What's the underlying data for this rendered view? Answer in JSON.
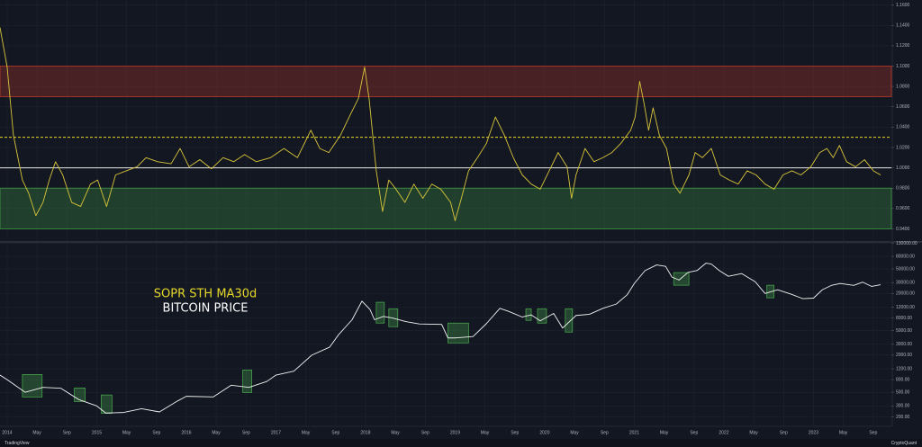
{
  "chart_data": [
    {
      "type": "line",
      "color": "#d9c53a",
      "xlim": [
        2013.92,
        2023.87
      ],
      "ylim": [
        0.928,
        1.165
      ],
      "yticks": [
        {
          "value": 0.94,
          "label": "0.9400"
        },
        {
          "value": 0.96,
          "label": "0.9600"
        },
        {
          "value": 0.98,
          "label": "0.9800"
        },
        {
          "value": 1.0,
          "label": "1.0000"
        },
        {
          "value": 1.02,
          "label": "1.0200"
        },
        {
          "value": 1.04,
          "label": "1.0400"
        },
        {
          "value": 1.06,
          "label": "1.0600"
        },
        {
          "value": 1.08,
          "label": "1.0800"
        },
        {
          "value": 1.1,
          "label": "1.1000"
        },
        {
          "value": 1.12,
          "label": "1.1200"
        },
        {
          "value": 1.14,
          "label": "1.1400"
        },
        {
          "value": 1.16,
          "label": "1.1600"
        }
      ],
      "bands": [
        {
          "range": [
            1.07,
            1.1
          ],
          "color": "#c0392b"
        },
        {
          "range": [
            0.94,
            0.98
          ],
          "color": "#3f9b45"
        }
      ],
      "hlines": [
        {
          "value": 1.0,
          "color": "#e8e8e8",
          "dashed": false
        },
        {
          "value": 1.03,
          "color": "#e5d72a",
          "dashed": true
        }
      ],
      "x": [
        2013.92,
        2014.0,
        2014.07,
        2014.17,
        2014.24,
        2014.32,
        2014.4,
        2014.47,
        2014.54,
        2014.62,
        2014.72,
        2014.82,
        2014.93,
        2015.01,
        2015.11,
        2015.21,
        2015.33,
        2015.45,
        2015.55,
        2015.68,
        2015.83,
        2015.93,
        2016.03,
        2016.15,
        2016.28,
        2016.41,
        2016.53,
        2016.65,
        2016.78,
        2016.94,
        2017.09,
        2017.24,
        2017.39,
        2017.49,
        2017.59,
        2017.72,
        2017.84,
        2017.92,
        2017.99,
        2018.04,
        2018.12,
        2018.19,
        2018.26,
        2018.34,
        2018.44,
        2018.54,
        2018.64,
        2018.74,
        2018.84,
        2018.95,
        2019.0,
        2019.07,
        2019.15,
        2019.25,
        2019.35,
        2019.45,
        2019.55,
        2019.65,
        2019.75,
        2019.85,
        2019.95,
        2020.05,
        2020.15,
        2020.25,
        2020.3,
        2020.35,
        2020.45,
        2020.55,
        2020.65,
        2020.75,
        2020.85,
        2020.96,
        2021.01,
        2021.06,
        2021.11,
        2021.16,
        2021.21,
        2021.28,
        2021.36,
        2021.44,
        2021.51,
        2021.61,
        2021.68,
        2021.76,
        2021.86,
        2021.96,
        2022.06,
        2022.16,
        2022.26,
        2022.36,
        2022.46,
        2022.56,
        2022.66,
        2022.76,
        2022.86,
        2022.97,
        2023.07,
        2023.15,
        2023.22,
        2023.29,
        2023.37,
        2023.47,
        2023.57,
        2023.67,
        2023.75
      ],
      "values": [
        1.138,
        1.099,
        1.032,
        0.988,
        0.975,
        0.953,
        0.966,
        0.988,
        1.006,
        0.993,
        0.966,
        0.962,
        0.984,
        0.988,
        0.962,
        0.993,
        0.997,
        1.001,
        1.01,
        1.006,
        1.004,
        1.019,
        1.001,
        1.008,
        0.999,
        1.01,
        1.006,
        1.013,
        1.006,
        1.01,
        1.019,
        1.01,
        1.037,
        1.019,
        1.015,
        1.032,
        1.054,
        1.068,
        1.099,
        1.068,
        0.997,
        0.957,
        0.988,
        0.979,
        0.966,
        0.984,
        0.97,
        0.984,
        0.979,
        0.966,
        0.948,
        0.97,
        0.997,
        1.01,
        1.024,
        1.05,
        1.032,
        1.01,
        0.993,
        0.984,
        0.979,
        0.997,
        1.015,
        1.001,
        0.97,
        0.993,
        1.019,
        1.006,
        1.01,
        1.015,
        1.024,
        1.037,
        1.05,
        1.085,
        1.063,
        1.037,
        1.059,
        1.032,
        1.019,
        0.984,
        0.975,
        0.993,
        1.015,
        1.01,
        1.019,
        0.993,
        0.988,
        0.984,
        0.997,
        0.993,
        0.984,
        0.979,
        0.993,
        0.997,
        0.993,
        1.001,
        1.015,
        1.019,
        1.01,
        1.022,
        1.006,
        1.001,
        1.008,
        0.997,
        0.993
      ]
    },
    {
      "type": "line",
      "color": "#f2f2f2",
      "log_scale": true,
      "xlim": [
        2013.92,
        2023.87
      ],
      "ylim": [
        145,
        137000
      ],
      "xticks": [
        2014,
        {
          "value": 2014.333,
          "label": "May"
        },
        {
          "value": 2014.667,
          "label": "Sep"
        },
        2015,
        {
          "value": 2015.333,
          "label": "May"
        },
        {
          "value": 2015.667,
          "label": "Sep"
        },
        2016,
        {
          "value": 2016.333,
          "label": "May"
        },
        {
          "value": 2016.667,
          "label": "Sep"
        },
        2017,
        {
          "value": 2017.333,
          "label": "May"
        },
        {
          "value": 2017.667,
          "label": "Sep"
        },
        2018,
        {
          "value": 2018.333,
          "label": "May"
        },
        {
          "value": 2018.667,
          "label": "Sep"
        },
        2019,
        {
          "value": 2019.333,
          "label": "May"
        },
        {
          "value": 2019.667,
          "label": "Sep"
        },
        2020,
        {
          "value": 2020.333,
          "label": "May"
        },
        {
          "value": 2020.667,
          "label": "Sep"
        },
        2021,
        {
          "value": 2021.333,
          "label": "May"
        },
        {
          "value": 2021.667,
          "label": "Sep"
        },
        2022,
        {
          "value": 2022.333,
          "label": "May"
        },
        {
          "value": 2022.667,
          "label": "Sep"
        },
        2023,
        {
          "value": 2023.333,
          "label": "May"
        },
        {
          "value": 2023.667,
          "label": "Sep"
        }
      ],
      "yticks": [
        {
          "value": 200,
          "label": "200.00"
        },
        {
          "value": 300,
          "label": "300.00"
        },
        {
          "value": 500,
          "label": "500.00"
        },
        {
          "value": 800,
          "label": "800.00"
        },
        {
          "value": 1200,
          "label": "1200.00"
        },
        {
          "value": 2000,
          "label": "2000.00"
        },
        {
          "value": 3000,
          "label": "3000.00"
        },
        {
          "value": 5000,
          "label": "5000.00"
        },
        {
          "value": 8000,
          "label": "8000.00"
        },
        {
          "value": 12000,
          "label": "12000.00"
        },
        {
          "value": 20000,
          "label": "20000.00"
        },
        {
          "value": 30000,
          "label": "30000.00"
        },
        {
          "value": 50000,
          "label": "50000.00"
        },
        {
          "value": 80000,
          "label": "80000.00"
        },
        {
          "value": 130000,
          "label": "130000.00"
        }
      ],
      "annotations": [
        {
          "text": "SOPR STH MA30d",
          "color": "#e5d72a"
        },
        {
          "text": "BITCOIN PRICE",
          "color": "#ffffff"
        }
      ],
      "zones": [
        {
          "x": [
            2014.17,
            2014.39
          ],
          "y": [
            419,
            972
          ]
        },
        {
          "x": [
            2014.75,
            2014.87
          ],
          "y": [
            354,
            587
          ]
        },
        {
          "x": [
            2015.05,
            2015.17
          ],
          "y": [
            228,
            452
          ]
        },
        {
          "x": [
            2016.63,
            2016.73
          ],
          "y": [
            495,
            1150
          ]
        },
        {
          "x": [
            2018.12,
            2018.21
          ],
          "y": [
            6620,
            14400
          ]
        },
        {
          "x": [
            2018.26,
            2018.36
          ],
          "y": [
            5790,
            11300
          ]
        },
        {
          "x": [
            2018.92,
            2019.15
          ],
          "y": [
            3160,
            6620
          ]
        },
        {
          "x": [
            2019.79,
            2019.85
          ],
          "y": [
            7320,
            11300
          ]
        },
        {
          "x": [
            2019.92,
            2020.02
          ],
          "y": [
            6620,
            11300
          ]
        },
        {
          "x": [
            2020.23,
            2020.31
          ],
          "y": [
            4730,
            11300
          ]
        },
        {
          "x": [
            2021.44,
            2021.61
          ],
          "y": [
            27200,
            43600
          ]
        },
        {
          "x": [
            2022.48,
            2022.56
          ],
          "y": [
            17000,
            27200
          ]
        }
      ],
      "zone_color": "#4caf50",
      "x": [
        2013.92,
        2014.0,
        2014.2,
        2014.4,
        2014.6,
        2014.8,
        2015.0,
        2015.1,
        2015.3,
        2015.5,
        2015.7,
        2015.9,
        2016.0,
        2016.3,
        2016.5,
        2016.7,
        2016.9,
        2017.0,
        2017.2,
        2017.4,
        2017.6,
        2017.7,
        2017.85,
        2017.96,
        2018.05,
        2018.1,
        2018.2,
        2018.3,
        2018.45,
        2018.6,
        2018.85,
        2018.92,
        2019.0,
        2019.2,
        2019.35,
        2019.5,
        2019.6,
        2019.75,
        2019.85,
        2019.95,
        2020.1,
        2020.2,
        2020.35,
        2020.5,
        2020.65,
        2020.8,
        2020.92,
        2021.0,
        2021.12,
        2021.25,
        2021.35,
        2021.42,
        2021.5,
        2021.6,
        2021.7,
        2021.8,
        2021.86,
        2021.95,
        2022.05,
        2022.2,
        2022.35,
        2022.46,
        2022.6,
        2022.75,
        2022.88,
        2023.0,
        2023.1,
        2023.2,
        2023.3,
        2023.45,
        2023.55,
        2023.65,
        2023.75
      ],
      "values": [
        950,
        800,
        500,
        600,
        580,
        380,
        300,
        230,
        235,
        270,
        240,
        360,
        430,
        420,
        650,
        600,
        750,
        950,
        1100,
        2000,
        2700,
        4300,
        7500,
        15000,
        11000,
        7500,
        8500,
        8000,
        7000,
        6400,
        6300,
        3800,
        3800,
        4000,
        6500,
        11500,
        10200,
        8300,
        9000,
        7200,
        9500,
        5500,
        8800,
        9200,
        11500,
        13500,
        19000,
        29000,
        47000,
        58000,
        55000,
        37000,
        33000,
        44000,
        47000,
        62000,
        60000,
        47000,
        38000,
        42000,
        31000,
        20000,
        23000,
        19500,
        16500,
        16800,
        23000,
        27000,
        29000,
        27000,
        30500,
        26000,
        27700
      ]
    }
  ],
  "footer": {
    "left": "TradingView",
    "right": "CryptoQuant"
  }
}
